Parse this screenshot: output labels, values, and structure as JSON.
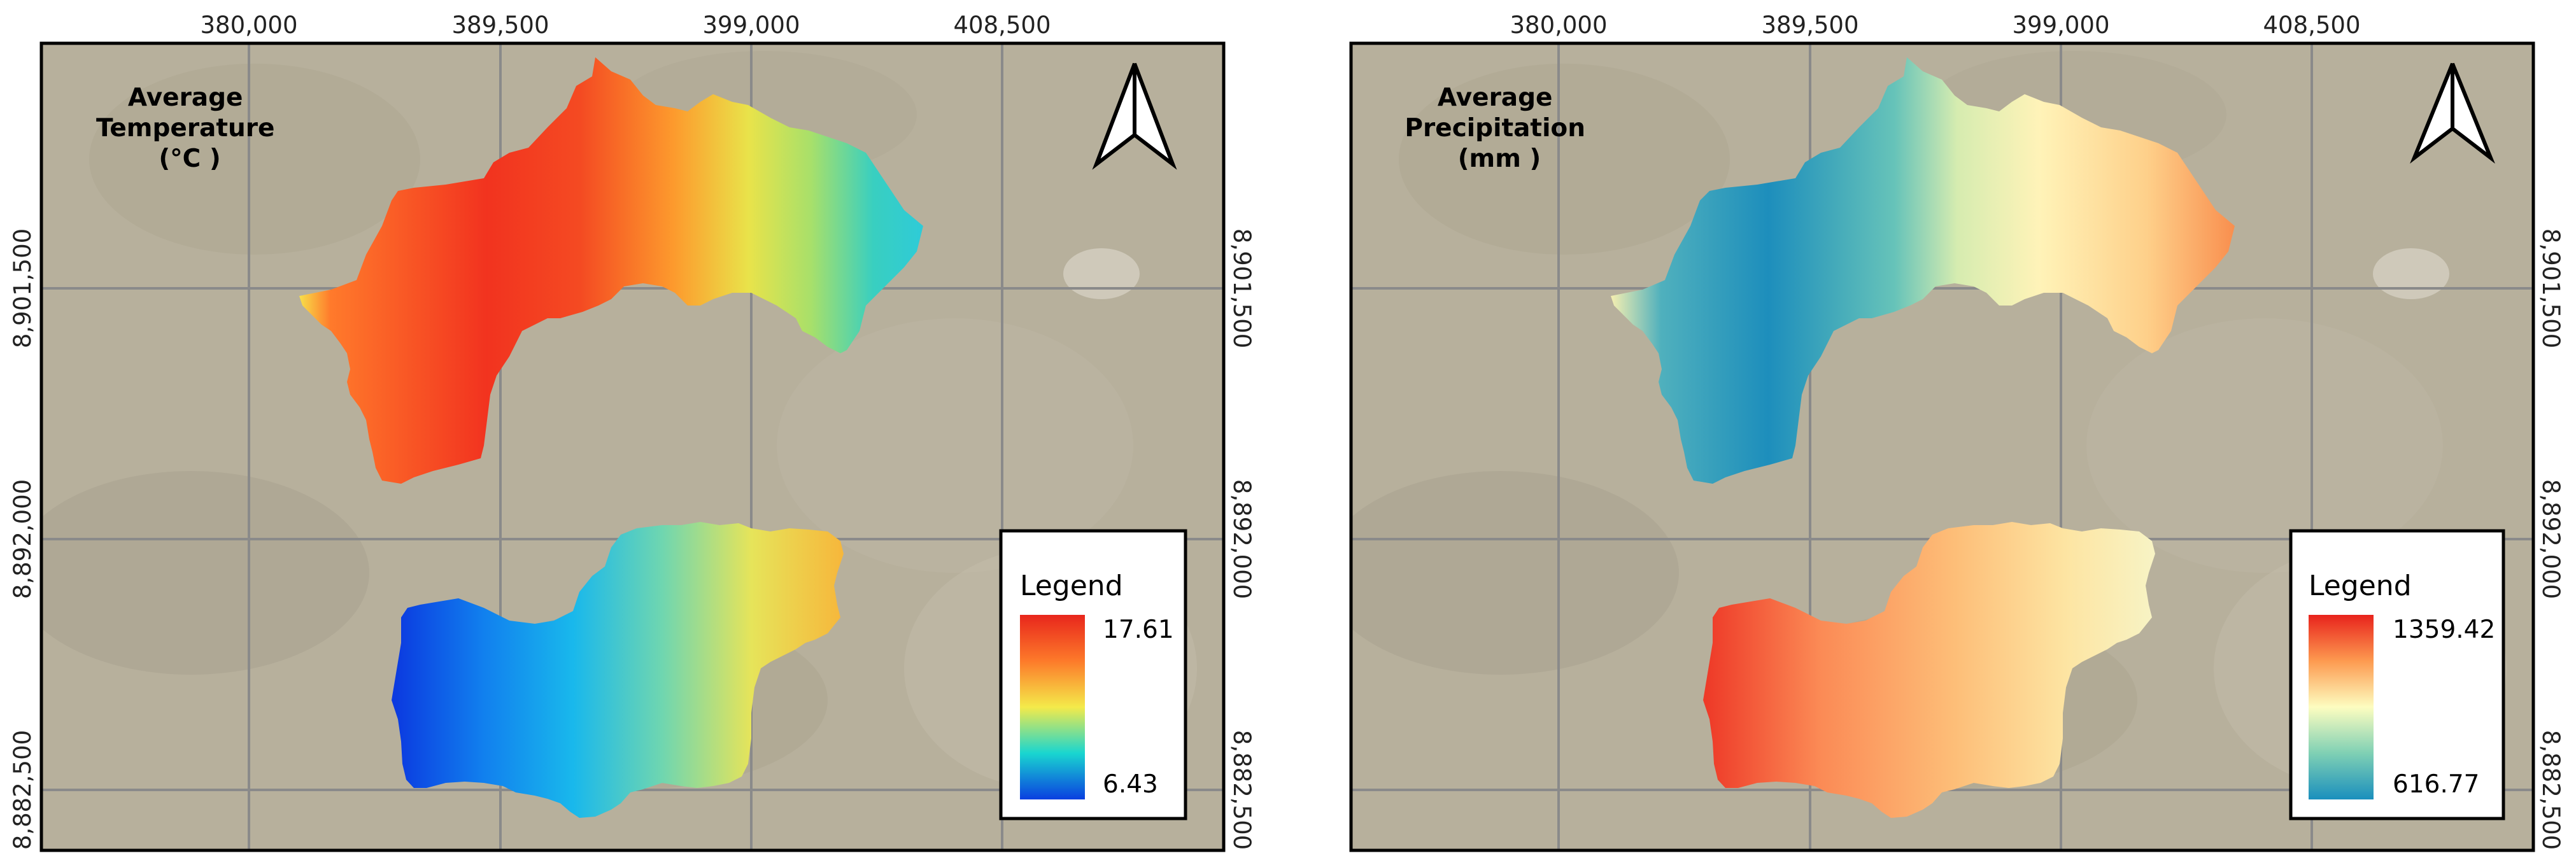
{
  "maps": [
    {
      "title_lines": [
        "Average",
        "Temperature",
        "(°C )"
      ],
      "x_ticks": [
        "380,000",
        "389,500",
        "399,000",
        "408,500"
      ],
      "y_ticks": [
        "8,901,500",
        "8,892,000",
        "8,882,500"
      ],
      "legend": {
        "title": "Legend",
        "max": "17.61",
        "min": "6.43",
        "ramp": [
          "#d7191c",
          "#fd8d3c",
          "#fee08b",
          "#1fd6c8",
          "#0a4be0"
        ]
      }
    },
    {
      "title_lines": [
        "Average",
        "Precipitation",
        "(mm )"
      ],
      "x_ticks": [
        "380,000",
        "389,500",
        "399,000",
        "408,500"
      ],
      "y_ticks": [
        "8,901,500",
        "8,892,000",
        "8,882,500"
      ],
      "legend": {
        "title": "Legend",
        "max": "1359.42",
        "min": "616.77",
        "ramp": [
          "#e8362a",
          "#fdae61",
          "#ffffbf",
          "#74c9b2",
          "#1a91c0"
        ]
      }
    }
  ],
  "colors": {
    "basemap": "#b7b09c",
    "grid": "#8a8a8a",
    "frame": "#000000"
  }
}
